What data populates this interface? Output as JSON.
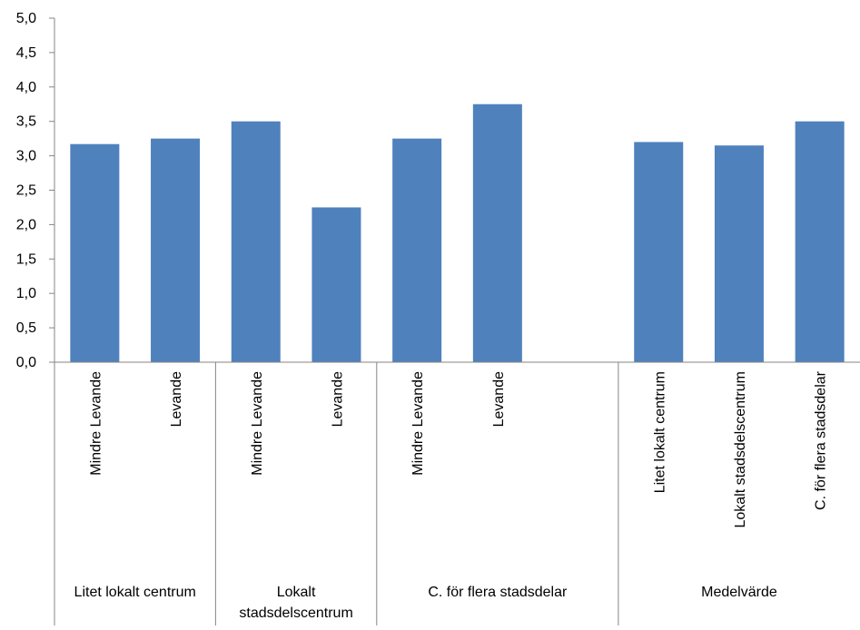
{
  "chart_data": {
    "type": "bar",
    "title": "",
    "xlabel": "",
    "ylabel": "",
    "ylim": [
      0,
      5
    ],
    "yticks": [
      "0,0",
      "0,5",
      "1,0",
      "1,5",
      "2,0",
      "2,5",
      "3,0",
      "3,5",
      "4,0",
      "4,5",
      "5,0"
    ],
    "grid": false,
    "legend": "none",
    "bar_color": "#4f81bd",
    "categories": [
      "Mindre Levande",
      "Levande",
      "Mindre Levande",
      "Levande",
      "Mindre Levande",
      "Levande",
      "",
      "Litet lokalt centrum",
      "Lokalt stadsdelscentrum",
      "C. för flera stadsdelar"
    ],
    "values": [
      3.17,
      3.25,
      3.5,
      2.25,
      3.25,
      3.75,
      null,
      3.2,
      3.15,
      3.5
    ],
    "groups": [
      {
        "label_lines": [
          "Litet lokalt centrum"
        ],
        "start": 0,
        "end": 2
      },
      {
        "label_lines": [
          "Lokalt",
          "stadsdelscentrum"
        ],
        "start": 2,
        "end": 4
      },
      {
        "label_lines": [
          "C. för flera stadsdelar"
        ],
        "start": 4,
        "end": 7
      },
      {
        "label_lines": [
          "Medelvärde"
        ],
        "start": 7,
        "end": 10
      }
    ]
  }
}
